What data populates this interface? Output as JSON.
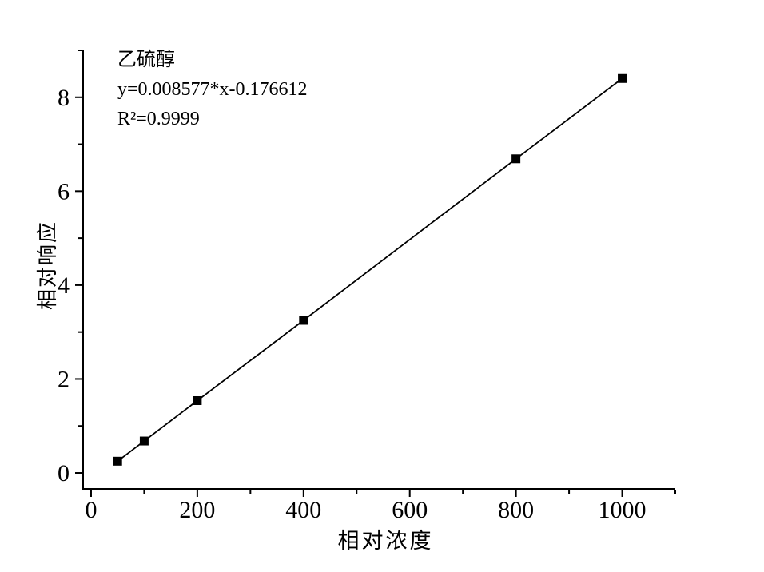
{
  "chart_data": {
    "type": "scatter",
    "series": [
      {
        "name": "乙硫醇",
        "x": [
          50,
          100,
          200,
          400,
          800,
          1000
        ],
        "y": [
          0.25,
          0.68,
          1.54,
          3.25,
          6.69,
          8.4
        ],
        "marker": "filled-square",
        "line": "straight-fit-line"
      }
    ],
    "xlabel": "相对浓度",
    "ylabel": "相对响应",
    "xlim": [
      -15,
      1100
    ],
    "ylim": [
      -0.34,
      9.0
    ],
    "x_major_ticks": [
      0,
      200,
      400,
      600,
      800,
      1000
    ],
    "x_minor_ticks": [
      100,
      300,
      500,
      700,
      900,
      1100
    ],
    "y_major_ticks": [
      0,
      2,
      4,
      6,
      8
    ],
    "y_minor_ticks": [
      1,
      3,
      5,
      7,
      9
    ],
    "grid": false,
    "legend_position": "none",
    "annotation": {
      "line1": "乙硫醇",
      "line2": "y=0.008577*x-0.176612",
      "line3": "R²=0.9999"
    },
    "regression": {
      "slope": 0.008577,
      "intercept": -0.176612,
      "r_squared": 0.9999
    },
    "colors": {
      "axis": "#000000",
      "line": "#000000",
      "marker": "#000000",
      "text": "#000000",
      "background": "#ffffff"
    }
  }
}
